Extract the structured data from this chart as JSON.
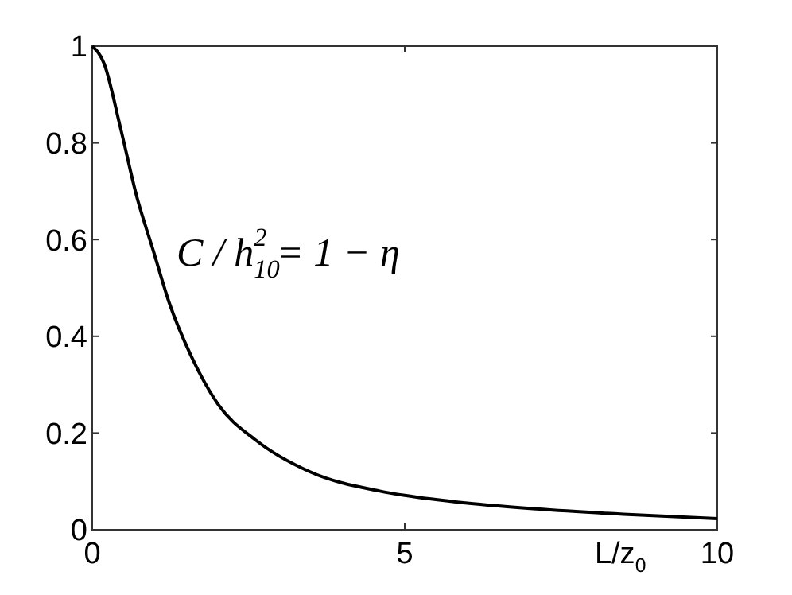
{
  "chart_data": {
    "type": "line",
    "xlabel": "L/z$_{0}$",
    "annotations": [
      "C / h$_{10}$$^{2}$ = 1 − η"
    ],
    "xlim": [
      0,
      10
    ],
    "ylim": [
      0,
      1
    ],
    "xticks": [
      0,
      5,
      10
    ],
    "yticks": [
      0,
      0.2,
      0.4,
      0.6,
      0.8,
      1
    ],
    "grid": false,
    "series": [
      {
        "color": "#000000",
        "x": [
          0,
          0.19,
          0.45,
          0.71,
          0.97,
          1.23,
          1.58,
          2.01,
          2.62,
          3.48,
          4.6,
          5,
          6,
          7.1,
          8.5,
          10
        ],
        "values": [
          1,
          0.964,
          0.832,
          0.69,
          0.58,
          0.47,
          0.36,
          0.26,
          0.185,
          0.12,
          0.08,
          0.071,
          0.055,
          0.043,
          0.032,
          0.023
        ]
      }
    ]
  }
}
